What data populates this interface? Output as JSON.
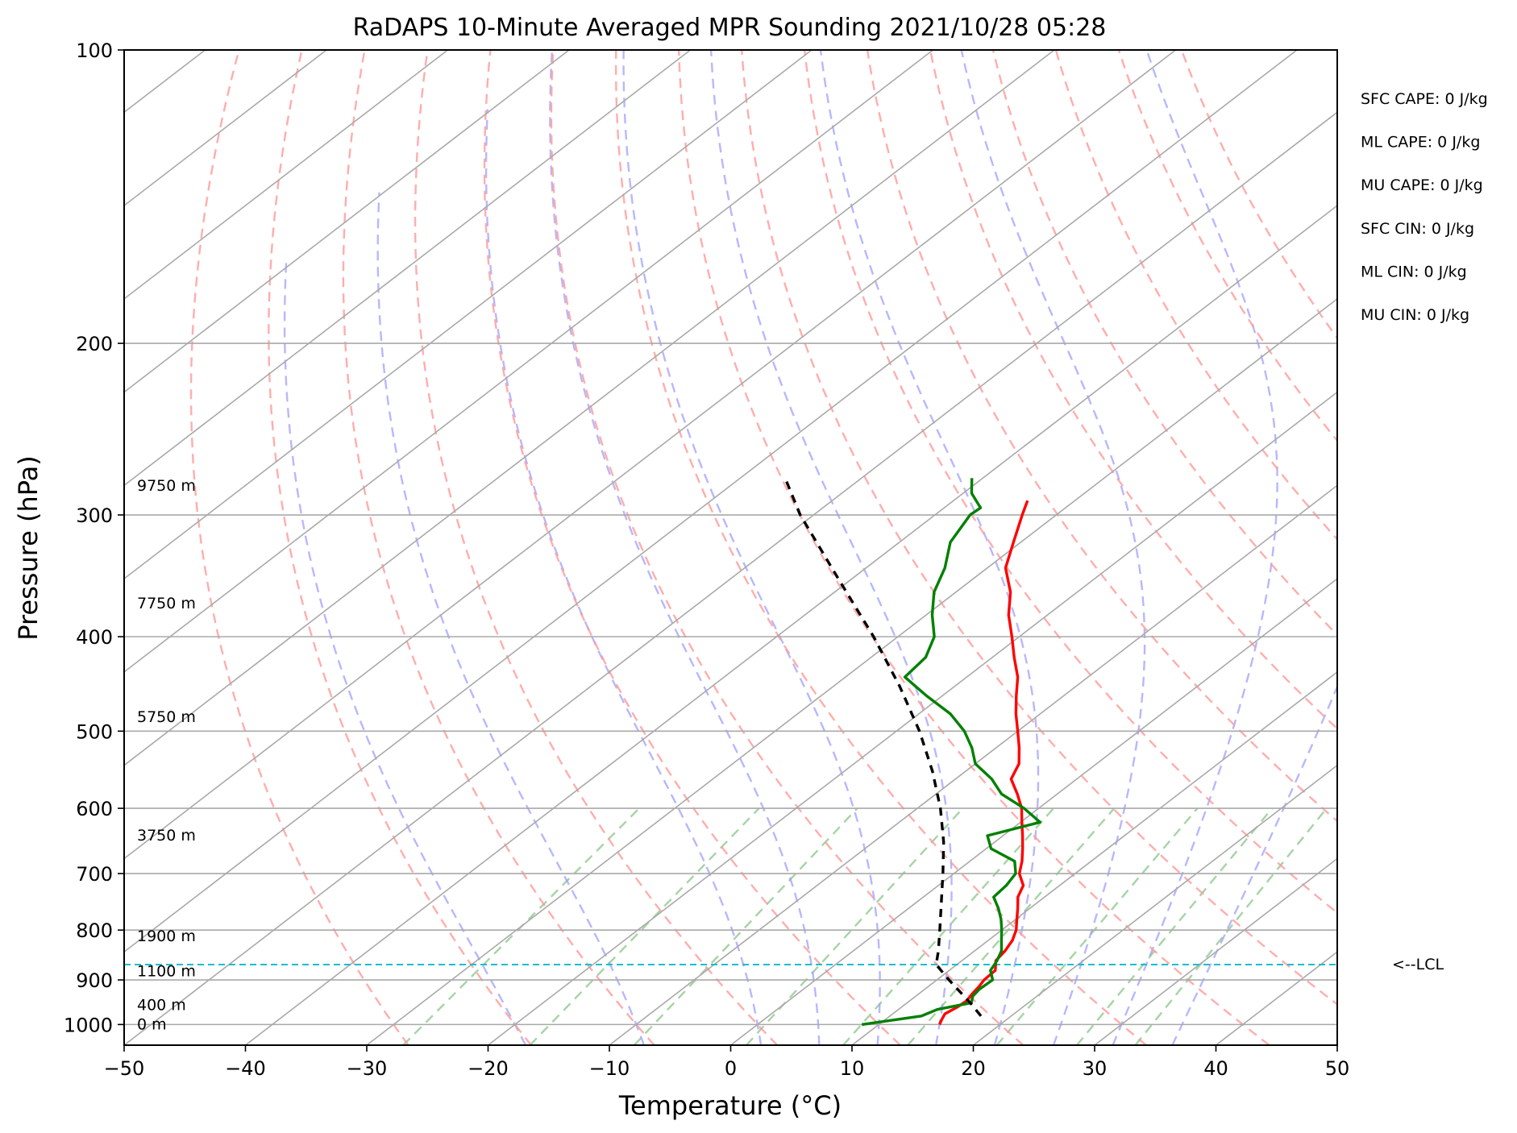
{
  "chart_data": {
    "type": "line",
    "chart_kind": "skew-T log-P sounding",
    "title": "RaDAPS 10-Minute Averaged MPR Sounding 2021/10/28 05:28",
    "xlabel": "Temperature (°C)",
    "ylabel": "Pressure (hPa)",
    "xlim": [
      -50,
      50
    ],
    "ylim": [
      1050,
      100
    ],
    "y_scale": "log",
    "grid": true,
    "x_ticks": [
      -50,
      -40,
      -30,
      -20,
      -10,
      0,
      10,
      20,
      30,
      40,
      50
    ],
    "x_tick_labels": [
      "−50",
      "−40",
      "−30",
      "−20",
      "−10",
      "0",
      "10",
      "20",
      "30",
      "40",
      "50"
    ],
    "y_ticks": [
      1000,
      900,
      800,
      700,
      600,
      500,
      400,
      300,
      200,
      100
    ],
    "y_tick_labels": [
      "1000",
      "900",
      "800",
      "700",
      "600",
      "500",
      "400",
      "300",
      "200",
      "100"
    ],
    "height_labels": [
      {
        "p": 1000,
        "text": "0 m"
      },
      {
        "p": 956,
        "text": "400 m"
      },
      {
        "p": 882,
        "text": "1100 m"
      },
      {
        "p": 812,
        "text": "1900 m"
      },
      {
        "p": 640,
        "text": "3750 m"
      },
      {
        "p": 484,
        "text": "5750 m"
      },
      {
        "p": 370,
        "text": "7750 m"
      },
      {
        "p": 280,
        "text": "9750 m"
      }
    ],
    "lcl": {
      "p": 868,
      "label": "<--LCL",
      "color": "#17becf"
    },
    "indices": [
      "SFC CAPE: 0 J/kg",
      "ML CAPE: 0 J/kg",
      "MU CAPE: 0 J/kg",
      "SFC CIN: 0 J/kg",
      "ML CIN: 0 J/kg",
      "MU CIN: 0 J/kg"
    ],
    "series": [
      {
        "key": "temperature",
        "color": "#ff0000",
        "dash": "",
        "points": [
          [
            1000,
            15.0
          ],
          [
            990,
            14.7
          ],
          [
            975,
            14.3
          ],
          [
            960,
            14.6
          ],
          [
            945,
            14.7
          ],
          [
            930,
            14.4
          ],
          [
            915,
            14.2
          ],
          [
            900,
            13.9
          ],
          [
            880,
            13.8
          ],
          [
            860,
            12.8
          ],
          [
            840,
            12.5
          ],
          [
            820,
            12.0
          ],
          [
            800,
            11.2
          ],
          [
            780,
            10.1
          ],
          [
            760,
            9.0
          ],
          [
            740,
            7.8
          ],
          [
            720,
            7.0
          ],
          [
            700,
            5.4
          ],
          [
            680,
            4.3
          ],
          [
            660,
            3.0
          ],
          [
            640,
            1.6
          ],
          [
            620,
            0.1
          ],
          [
            600,
            -1.4
          ],
          [
            580,
            -3.3
          ],
          [
            560,
            -5.4
          ],
          [
            540,
            -6.4
          ],
          [
            520,
            -8.1
          ],
          [
            500,
            -10.0
          ],
          [
            480,
            -12.0
          ],
          [
            460,
            -13.9
          ],
          [
            440,
            -15.8
          ],
          [
            420,
            -18.2
          ],
          [
            400,
            -20.6
          ],
          [
            380,
            -23.2
          ],
          [
            360,
            -25.5
          ],
          [
            340,
            -28.5
          ],
          [
            320,
            -30.6
          ],
          [
            300,
            -32.8
          ],
          [
            290,
            -33.9
          ]
        ]
      },
      {
        "key": "dewpoint",
        "color": "#008000",
        "dash": "",
        "points": [
          [
            1000,
            8.6
          ],
          [
            980,
            12.6
          ],
          [
            965,
            13.2
          ],
          [
            950,
            15.3
          ],
          [
            935,
            14.7
          ],
          [
            920,
            14.5
          ],
          [
            900,
            14.6
          ],
          [
            880,
            13.4
          ],
          [
            860,
            12.9
          ],
          [
            840,
            12.2
          ],
          [
            820,
            11.1
          ],
          [
            800,
            10.0
          ],
          [
            780,
            8.8
          ],
          [
            760,
            7.4
          ],
          [
            740,
            5.8
          ],
          [
            720,
            5.6
          ],
          [
            700,
            5.1
          ],
          [
            680,
            3.7
          ],
          [
            660,
            0.4
          ],
          [
            640,
            -1.3
          ],
          [
            620,
            1.6
          ],
          [
            600,
            -1.2
          ],
          [
            580,
            -4.6
          ],
          [
            560,
            -7.0
          ],
          [
            540,
            -10.0
          ],
          [
            520,
            -12.0
          ],
          [
            500,
            -14.4
          ],
          [
            480,
            -17.4
          ],
          [
            460,
            -21.3
          ],
          [
            440,
            -25.1
          ],
          [
            420,
            -25.5
          ],
          [
            400,
            -27.0
          ],
          [
            380,
            -29.5
          ],
          [
            360,
            -31.8
          ],
          [
            340,
            -33.5
          ],
          [
            320,
            -35.8
          ],
          [
            300,
            -37.1
          ],
          [
            295,
            -37.0
          ],
          [
            285,
            -39.3
          ],
          [
            275,
            -40.9
          ]
        ]
      },
      {
        "key": "parcel",
        "color": "#000000",
        "dash": "10,8",
        "points": [
          [
            980,
            17.5
          ],
          [
            950,
            15.2
          ],
          [
            900,
            11.0
          ],
          [
            868,
            8.3
          ],
          [
            840,
            7.0
          ],
          [
            800,
            4.9
          ],
          [
            750,
            2.1
          ],
          [
            700,
            -0.9
          ],
          [
            650,
            -4.2
          ],
          [
            600,
            -8.1
          ],
          [
            550,
            -12.7
          ],
          [
            500,
            -18.1
          ],
          [
            450,
            -24.5
          ],
          [
            400,
            -32.0
          ],
          [
            350,
            -40.9
          ],
          [
            300,
            -51.1
          ],
          [
            275,
            -56.3
          ]
        ]
      }
    ],
    "reference_lines": {
      "isotherms_c": [
        -150,
        -140,
        -130,
        -120,
        -110,
        -100,
        -90,
        -80,
        -70,
        -60,
        -50,
        -40,
        -30,
        -20,
        -10,
        0,
        10,
        20,
        30,
        40,
        50
      ],
      "dry_adiabats_c": [
        -30,
        -20,
        -10,
        0,
        10,
        20,
        30,
        40,
        50,
        60,
        70,
        80,
        90,
        100,
        110,
        120
      ],
      "moist_adiabats_c": [
        -20,
        -10,
        0,
        5,
        10,
        15,
        20,
        25,
        30,
        35
      ],
      "mixing_ratios_gkg": [
        0.4,
        1,
        2,
        4,
        7,
        10,
        16,
        24,
        32
      ],
      "isotherm_color": "#a9a9a9",
      "dry_adiabat_color": "#ff9999",
      "moist_adiabat_color": "#9999ff",
      "mixing_ratio_color": "#8fc98f"
    }
  }
}
